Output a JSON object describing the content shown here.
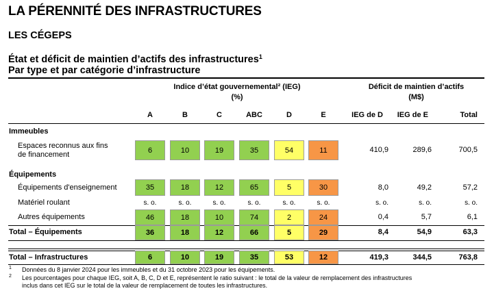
{
  "title": "LA PÉRENNITÉ DES INFRASTRUCTURES",
  "subtitle": "LES CÉGEPS",
  "caption_line1": "État et déficit de maintien d’actifs des infrastructures",
  "caption_line1_sup": "1",
  "caption_line2": "Par type et par catégorie d’infrastructure",
  "header": {
    "ieg_group_line1": "Indice d’état gouvernemental² (IEG)",
    "ieg_group_line2": "(%)",
    "deficit_group_line1": "Déficit de maintien d’actifs",
    "deficit_group_line2": "(M$)",
    "columns": [
      "A",
      "B",
      "C",
      "ABC",
      "D",
      "E",
      "IEG de D",
      "IEG de E",
      "Total"
    ]
  },
  "sections": {
    "immeubles": "Immeubles",
    "equipements": "Équipements"
  },
  "rows": [
    {
      "label_line1": "Espaces reconnus aux fins",
      "label_line2": "de financement",
      "values": [
        "6",
        "10",
        "19",
        "35",
        "54",
        "11"
      ],
      "deficit": [
        "410,9",
        "289,6",
        "700,5"
      ]
    },
    {
      "label_line1": "Équipements d'enseignement",
      "values": [
        "35",
        "18",
        "12",
        "65",
        "5",
        "30"
      ],
      "deficit": [
        "8,0",
        "49,2",
        "57,2"
      ]
    },
    {
      "label_line1": "Matériel roulant",
      "values": [
        "s. o.",
        "s. o.",
        "s. o.",
        "s. o.",
        "s. o.",
        "s. o."
      ],
      "deficit": [
        "s. o.",
        "s. o.",
        "s. o."
      ]
    },
    {
      "label_line1": "Autres équipements",
      "values": [
        "46",
        "18",
        "10",
        "74",
        "2",
        "24"
      ],
      "deficit": [
        "0,4",
        "5,7",
        "6,1"
      ]
    },
    {
      "label_line1": "Total – Équipements",
      "values": [
        "36",
        "18",
        "12",
        "66",
        "5",
        "29"
      ],
      "deficit": [
        "8,4",
        "54,9",
        "63,3"
      ]
    },
    {
      "label_line1": "Total – Infrastructures",
      "values": [
        "6",
        "10",
        "19",
        "35",
        "53",
        "12"
      ],
      "deficit": [
        "419,3",
        "344,5",
        "763,8"
      ]
    }
  ],
  "colors": {
    "green": "#92d050",
    "yellow": "#ffff66",
    "orange": "#f79646"
  },
  "footnotes": [
    {
      "mark": "1",
      "text": "Données du 8 janvier 2024 pour les immeubles et du 31 octobre 2023 pour les équipements."
    },
    {
      "mark": "2",
      "text_line1": "Les pourcentages pour chaque IEG, soit A, B, C, D et E, représentent le ratio suivant : le total de la valeur de remplacement des infrastructures",
      "text_line2": "inclus dans cet IEG sur le total de la valeur de remplacement de toutes les infrastructures."
    }
  ]
}
